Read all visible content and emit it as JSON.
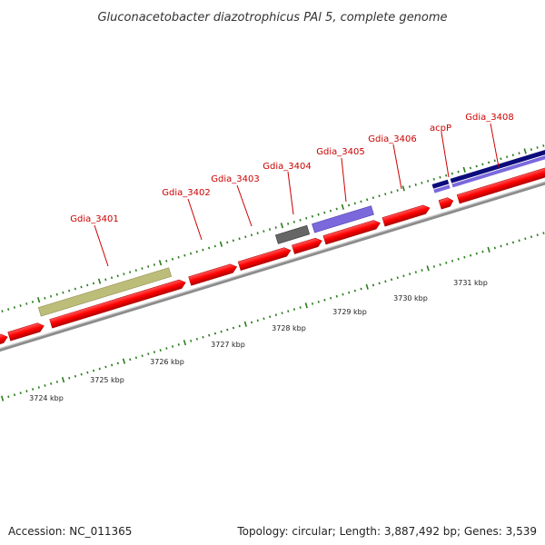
{
  "title": "Gluconacetobacter diazotrophicus PAl 5, complete genome",
  "gene_labels": [
    "Gdia_3401",
    "Gdia_3402",
    "Gdia_3403",
    "Gdia_3404",
    "Gdia_3405",
    "Gdia_3406",
    "acpP",
    "Gdia_3408"
  ],
  "scale_labels": [
    "3724 kbp",
    "3725 kbp",
    "3726 kbp",
    "3727 kbp",
    "3728 kbp",
    "3729 kbp",
    "3730 kbp",
    "3731 kbp"
  ],
  "footer": {
    "accession": "Accession: NC_011365",
    "stats": "Topology: circular; Length: 3,887,492 bp; Genes: 3,539"
  },
  "colors": {
    "cds": "#ff0000",
    "backbone": "#8c8c8c",
    "tick": "#2a7d1c",
    "label": "#cc0000",
    "feature_khaki": "#bdbd7a",
    "feature_gray": "#666666",
    "feature_lavender": "#7b68dd",
    "feature_navy": "#0c0c7a"
  }
}
